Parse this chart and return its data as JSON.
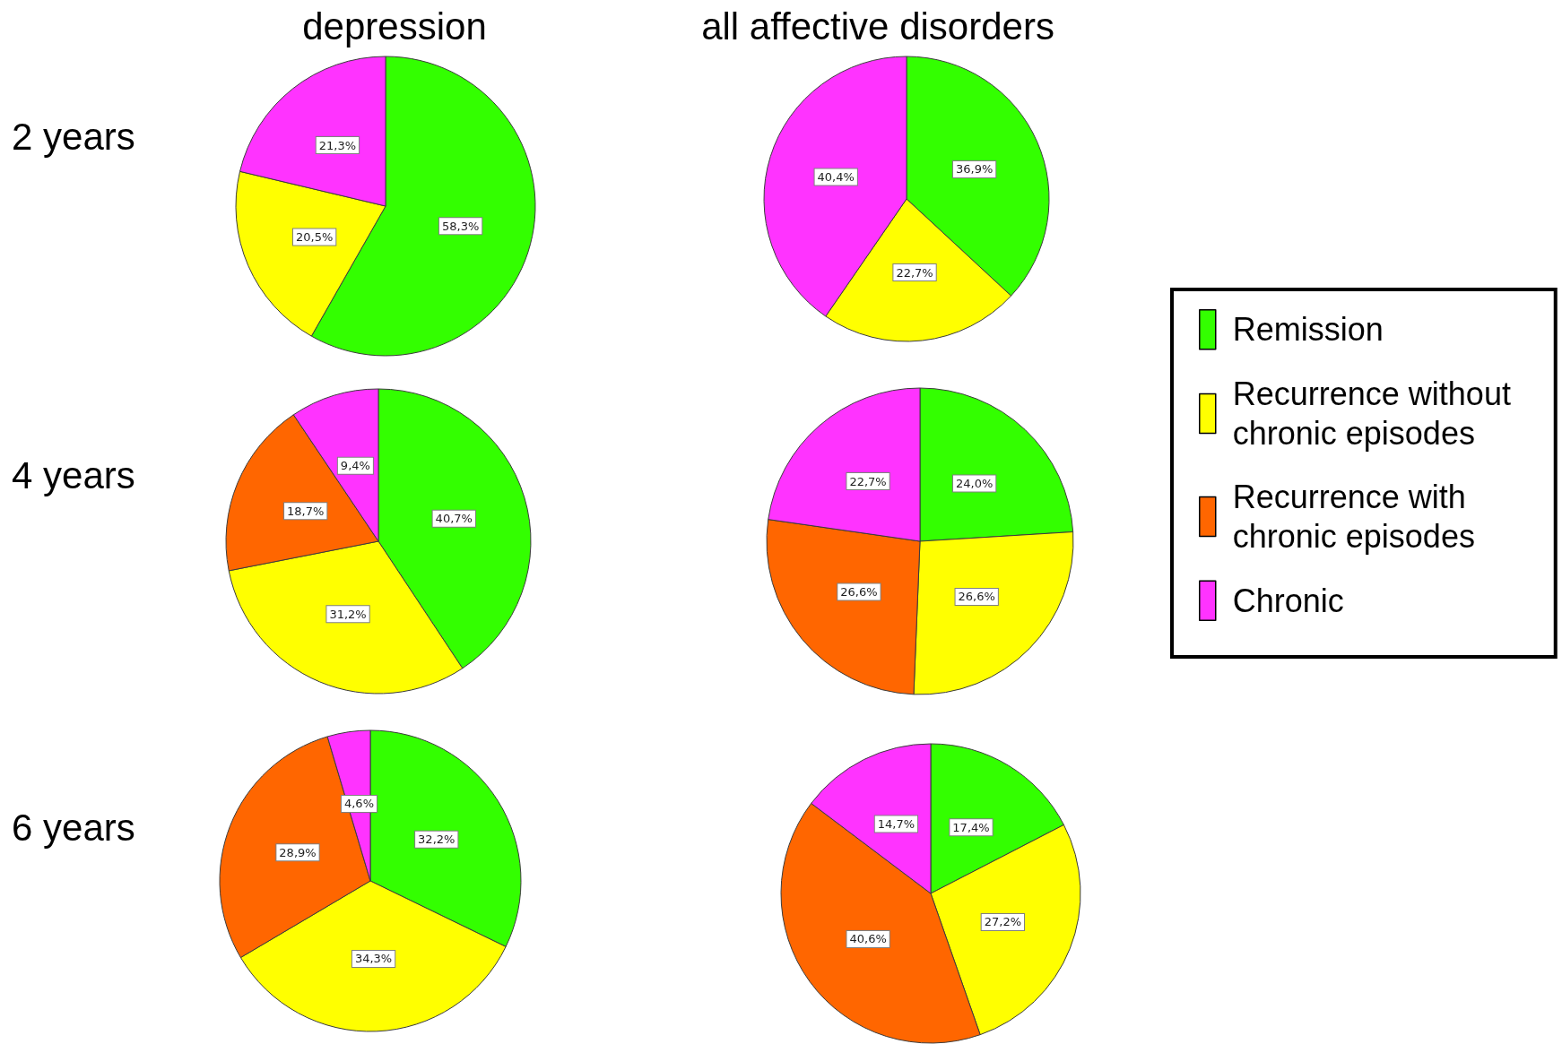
{
  "chart_data": [
    {
      "type": "pie",
      "title": "depression",
      "annotations": [
        "2 years"
      ],
      "categories": [
        null,
        null,
        null
      ],
      "values": [
        58.3,
        20.5,
        21.3
      ],
      "colors": [
        "#33ff00",
        "#ffff00",
        "#ff33ff"
      ],
      "value_labels": [
        "58,3%",
        "20,5%",
        "21,3%"
      ]
    },
    {
      "type": "pie",
      "title": "all affective disorders",
      "categories": [
        null,
        null,
        null
      ],
      "values": [
        36.9,
        22.7,
        40.4
      ],
      "colors": [
        "#33ff00",
        "#ffff00",
        "#ff33ff"
      ],
      "value_labels": [
        "36,9%",
        "22,7%",
        "40,4%"
      ]
    },
    {
      "type": "pie",
      "annotations": [
        "4 years"
      ],
      "categories": [
        null,
        null,
        null,
        null
      ],
      "values": [
        40.7,
        31.2,
        18.7,
        9.4
      ],
      "colors": [
        "#33ff00",
        "#ffff00",
        "#ff6600",
        "#ff33ff"
      ],
      "value_labels": [
        "40,7%",
        "31,2%",
        "18,7%",
        "9,4%"
      ]
    },
    {
      "type": "pie",
      "legend": "right",
      "categories": [
        "Remission",
        "Recurrence without chronic episodes",
        "Recurrence with chronic episodes",
        "Chronic"
      ],
      "values": [
        24.0,
        26.6,
        26.6,
        22.7
      ],
      "colors": [
        "#33ff00",
        "#ffff00",
        "#ff6600",
        "#ff33ff"
      ],
      "value_labels": [
        "24,0%",
        "26,6%",
        "26,6%",
        "22,7%"
      ]
    },
    {
      "type": "pie",
      "annotations": [
        "6 years"
      ],
      "categories": [
        null,
        null,
        null,
        null
      ],
      "values": [
        32.2,
        34.3,
        28.9,
        4.6
      ],
      "colors": [
        "#33ff00",
        "#ffff00",
        "#ff6600",
        "#ff33ff"
      ],
      "value_labels": [
        "32,2%",
        "34,3%",
        "28,9%",
        "4,6%"
      ]
    },
    {
      "type": "pie",
      "categories": [
        null,
        null,
        null,
        null
      ],
      "values": [
        17.4,
        27.2,
        40.6,
        14.7
      ],
      "colors": [
        "#33ff00",
        "#ffff00",
        "#ff6600",
        "#ff33ff"
      ],
      "value_labels": [
        "17,4%",
        "27,2%",
        "40,6%",
        "14,7%"
      ]
    }
  ]
}
